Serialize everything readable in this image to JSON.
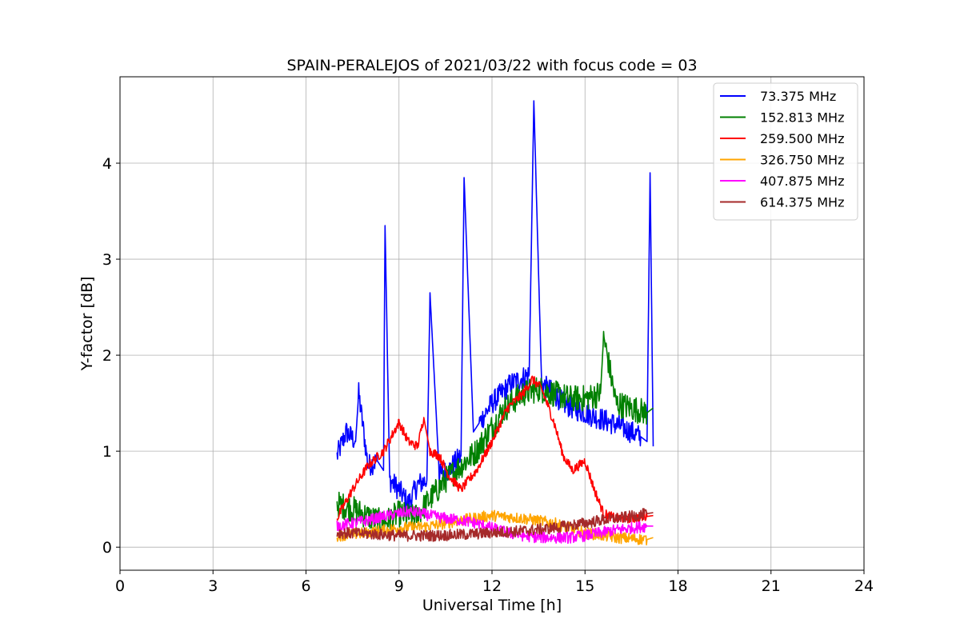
{
  "chart_data": {
    "type": "line",
    "title": "SPAIN-PERALEJOS of 2021/03/22 with focus code = 03",
    "xlabel": "Universal Time [h]",
    "ylabel": "Y-factor [dB]",
    "xlim": [
      0,
      24
    ],
    "ylim": [
      -0.24,
      4.9
    ],
    "xticks": [
      0,
      3,
      6,
      9,
      12,
      15,
      18,
      21,
      24
    ],
    "yticks": [
      0,
      1,
      2,
      3,
      4
    ],
    "grid": true,
    "legend_position": "top-right",
    "series": [
      {
        "name": " 73.375 MHz",
        "color": "#0000ff",
        "x": [
          7.0,
          7.3,
          7.6,
          7.7,
          8.0,
          8.3,
          8.5,
          8.55,
          8.7,
          9.0,
          9.3,
          9.6,
          9.9,
          10.0,
          10.3,
          10.6,
          11.0,
          11.1,
          11.4,
          11.6,
          12.0,
          12.3,
          12.6,
          12.9,
          13.2,
          13.35,
          13.6,
          14.0,
          14.3,
          14.6,
          15.0,
          15.4,
          15.8,
          16.2,
          16.5,
          16.8,
          17.0,
          17.1,
          17.2
        ],
        "y": [
          0.95,
          1.2,
          1.1,
          1.6,
          0.85,
          0.9,
          0.8,
          3.35,
          0.7,
          0.6,
          0.45,
          0.65,
          0.7,
          2.65,
          0.75,
          0.8,
          0.95,
          3.85,
          1.2,
          1.3,
          1.5,
          1.6,
          1.7,
          1.75,
          1.8,
          4.65,
          1.7,
          1.6,
          1.5,
          1.45,
          1.4,
          1.35,
          1.3,
          1.25,
          1.2,
          1.15,
          1.1,
          3.9,
          1.05
        ]
      },
      {
        "name": "152.813 MHz",
        "color": "#008000",
        "x": [
          7.0,
          7.5,
          8.0,
          8.5,
          9.0,
          9.5,
          10.0,
          10.5,
          11.0,
          11.5,
          12.0,
          12.3,
          12.6,
          13.0,
          13.5,
          14.0,
          14.5,
          15.0,
          15.5,
          15.6,
          16.0,
          16.5,
          17.0,
          17.2
        ],
        "y": [
          0.45,
          0.4,
          0.32,
          0.25,
          0.35,
          0.3,
          0.5,
          0.7,
          0.85,
          1.0,
          1.25,
          1.4,
          1.5,
          1.6,
          1.65,
          1.6,
          1.55,
          1.55,
          1.6,
          2.2,
          1.5,
          1.45,
          1.4,
          1.45
        ]
      },
      {
        "name": "259.500 MHz",
        "color": "#ff0000",
        "x": [
          7.0,
          7.5,
          8.0,
          8.5,
          9.0,
          9.3,
          9.6,
          9.8,
          10.0,
          10.3,
          10.6,
          11.0,
          11.5,
          12.0,
          12.5,
          13.0,
          13.3,
          13.6,
          14.0,
          14.3,
          14.6,
          15.0,
          15.3,
          15.6,
          16.0,
          16.5,
          17.0,
          17.2
        ],
        "y": [
          0.3,
          0.6,
          0.85,
          1.0,
          1.3,
          1.1,
          1.05,
          1.35,
          1.0,
          0.95,
          0.75,
          0.6,
          0.8,
          1.1,
          1.45,
          1.6,
          1.75,
          1.65,
          1.3,
          0.95,
          0.8,
          0.9,
          0.6,
          0.35,
          0.3,
          0.3,
          0.32,
          0.33
        ]
      },
      {
        "name": "326.750 MHz",
        "color": "#ffa500",
        "x": [
          7.0,
          8.0,
          9.0,
          10.0,
          11.0,
          12.0,
          13.0,
          14.0,
          15.0,
          16.0,
          17.0,
          17.2
        ],
        "y": [
          0.12,
          0.15,
          0.2,
          0.22,
          0.28,
          0.33,
          0.3,
          0.25,
          0.15,
          0.1,
          0.08,
          0.1
        ]
      },
      {
        "name": "407.875 MHz",
        "color": "#ff00ff",
        "x": [
          7.0,
          7.5,
          8.0,
          8.5,
          9.0,
          9.3,
          9.6,
          10.0,
          10.5,
          11.0,
          11.5,
          12.0,
          12.5,
          13.0,
          13.5,
          14.0,
          14.5,
          15.0,
          15.5,
          16.0,
          16.5,
          17.0,
          17.2
        ],
        "y": [
          0.22,
          0.25,
          0.28,
          0.32,
          0.35,
          0.37,
          0.36,
          0.33,
          0.3,
          0.28,
          0.25,
          0.2,
          0.15,
          0.12,
          0.1,
          0.1,
          0.1,
          0.12,
          0.15,
          0.18,
          0.2,
          0.22,
          0.22
        ]
      },
      {
        "name": "614.375 MHz",
        "color": "#a52a2a",
        "x": [
          7.0,
          8.0,
          9.0,
          10.0,
          11.0,
          12.0,
          13.0,
          14.0,
          15.0,
          15.5,
          16.0,
          16.5,
          17.0,
          17.2
        ],
        "y": [
          0.15,
          0.14,
          0.12,
          0.12,
          0.13,
          0.15,
          0.17,
          0.2,
          0.25,
          0.28,
          0.3,
          0.32,
          0.35,
          0.36
        ]
      }
    ]
  }
}
